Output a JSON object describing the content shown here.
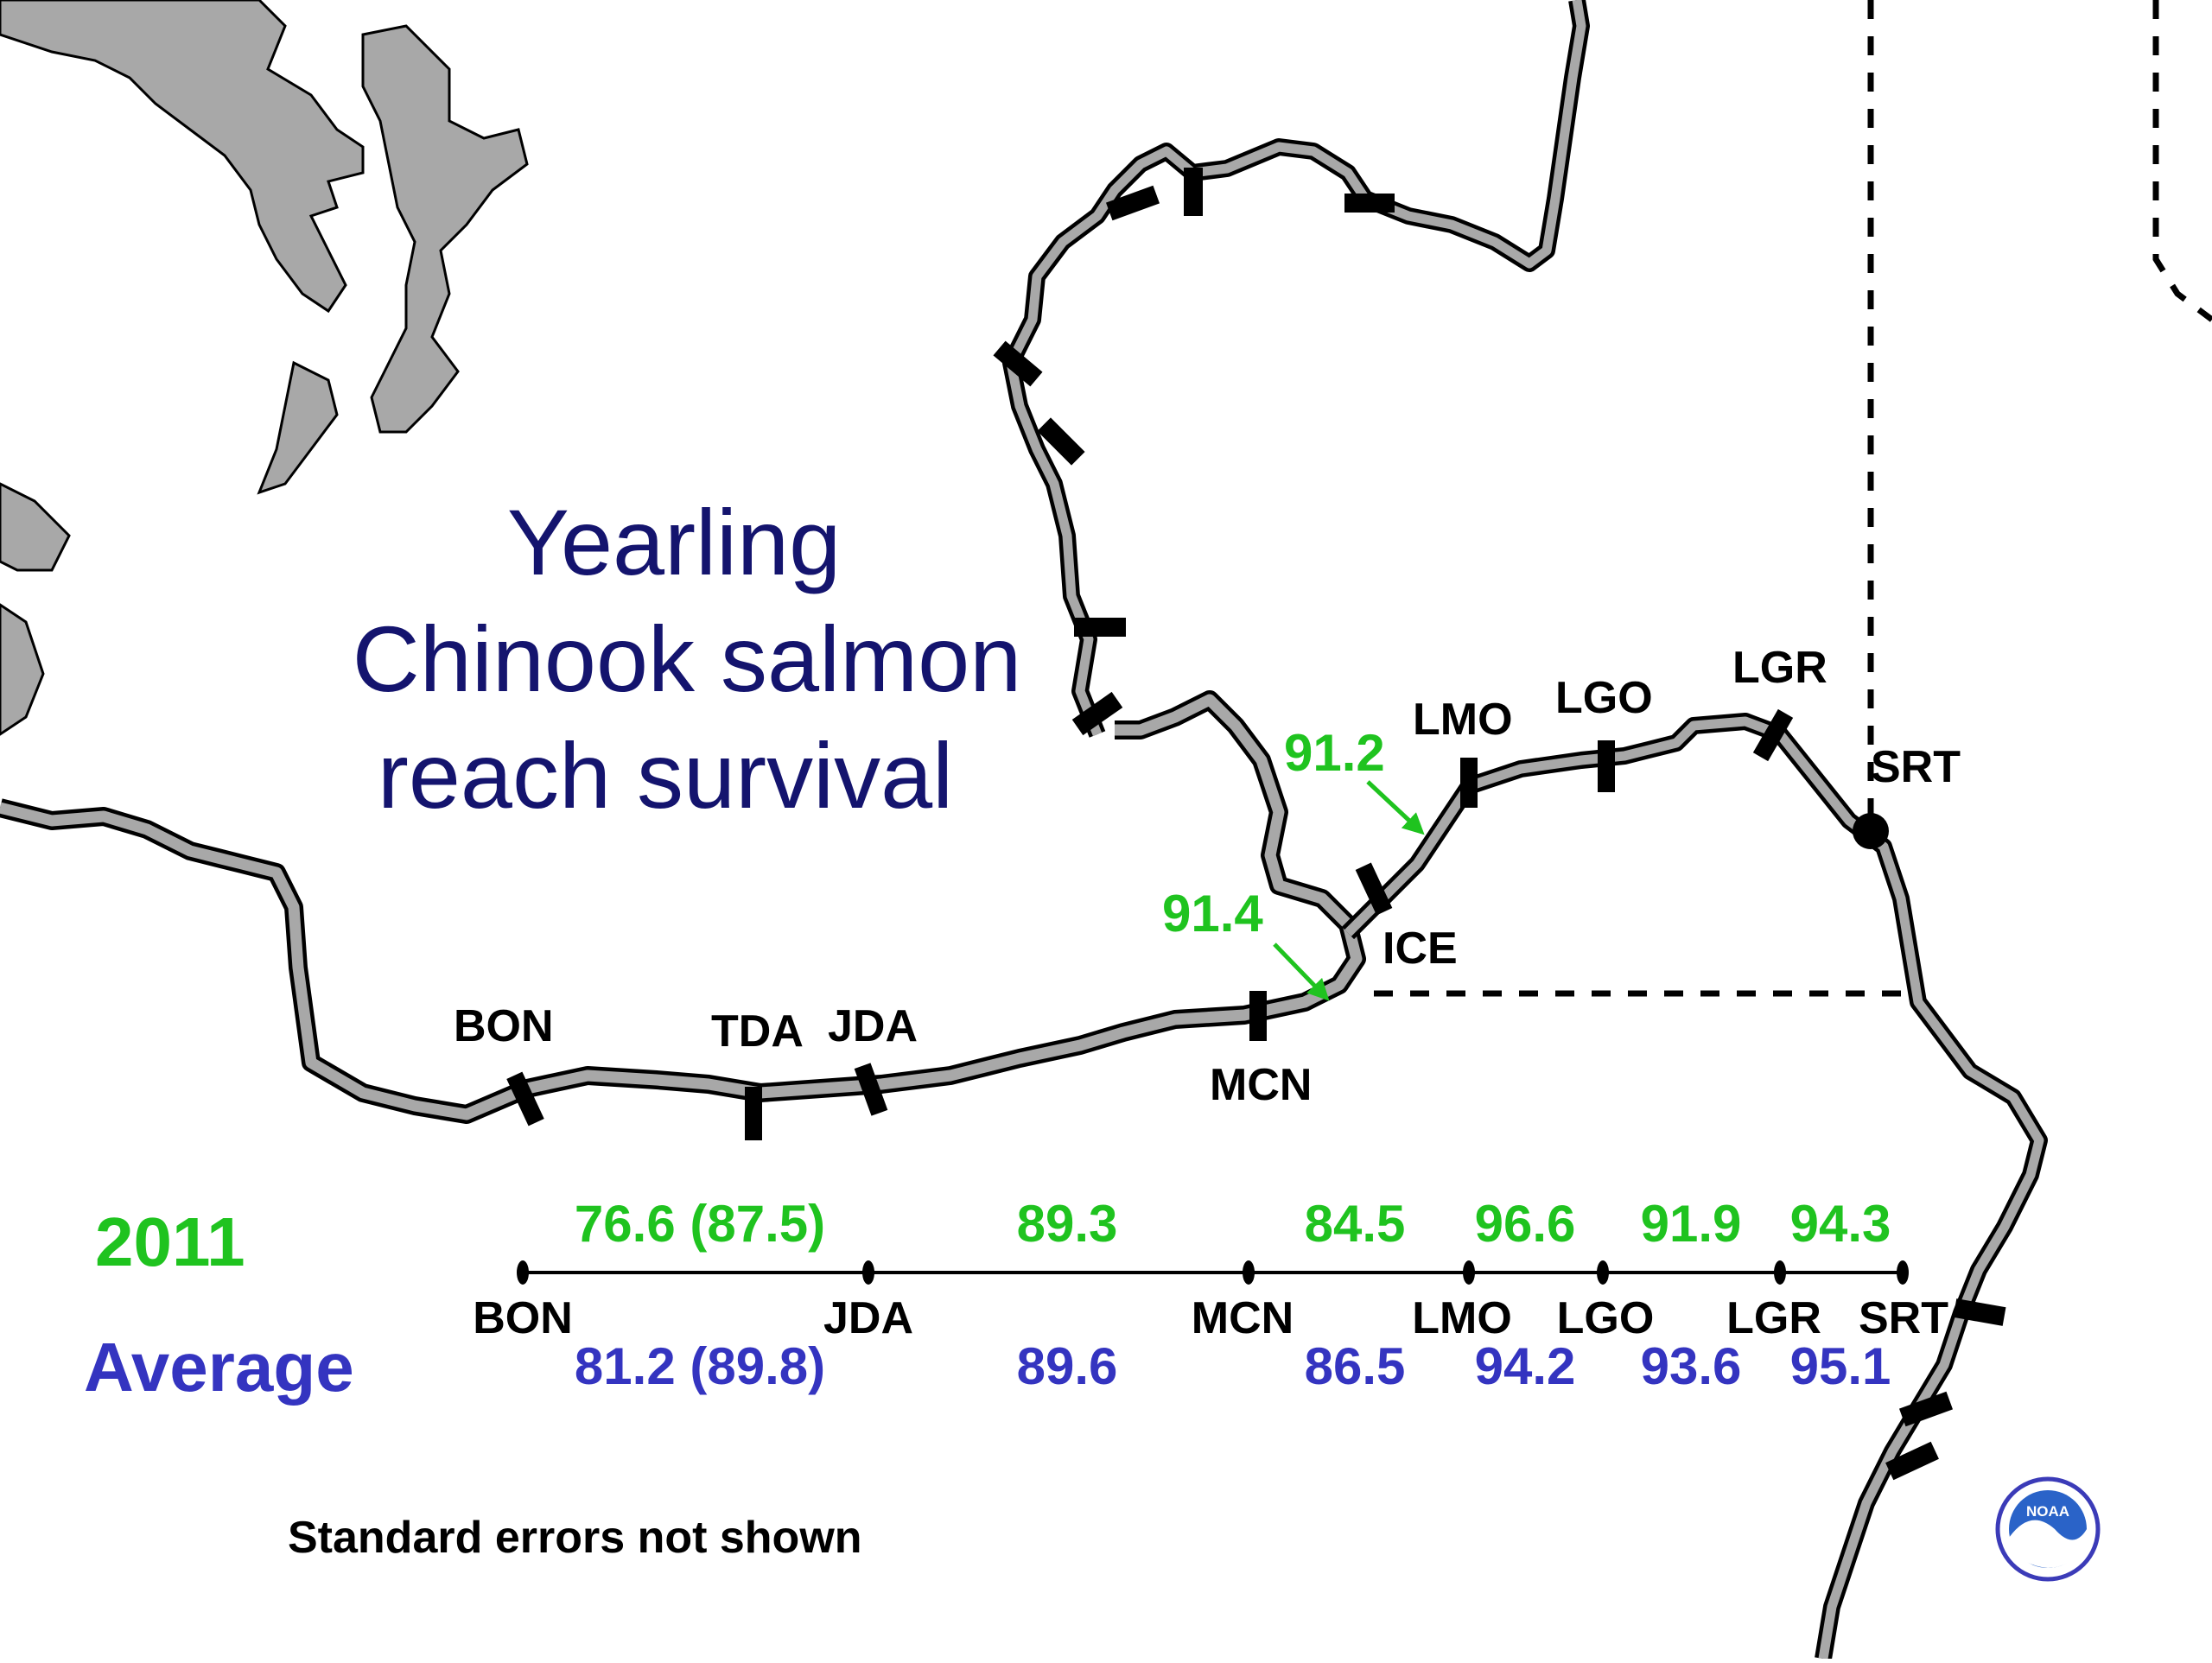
{
  "title": [
    "Yearling",
    "Chinook salmon",
    "reach survival"
  ],
  "map_sites": [
    "BON",
    "TDA",
    "JDA",
    "MCN",
    "ICE",
    "LMO",
    "LGO",
    "LGR",
    "SRT"
  ],
  "map_values": [
    "91.2",
    "91.4"
  ],
  "year_label": "2011",
  "average_label": "Average",
  "axis_sites": [
    "BON",
    "JDA",
    "MCN",
    "LMO",
    "LGO",
    "LGR",
    "SRT"
  ],
  "reach_values_2011": [
    "76.6 (87.5)",
    "89.3",
    "84.5",
    "96.6",
    "91.9",
    "94.3"
  ],
  "reach_values_average": [
    "81.2 (89.8)",
    "89.6",
    "86.5",
    "94.2",
    "93.6",
    "95.1"
  ],
  "note": "Standard errors not shown",
  "logo_text": "NOAA",
  "colors": {
    "green": "#1fc31f",
    "blue": "#3434c0",
    "title": "#14146e",
    "water": "#a8a8a8"
  }
}
